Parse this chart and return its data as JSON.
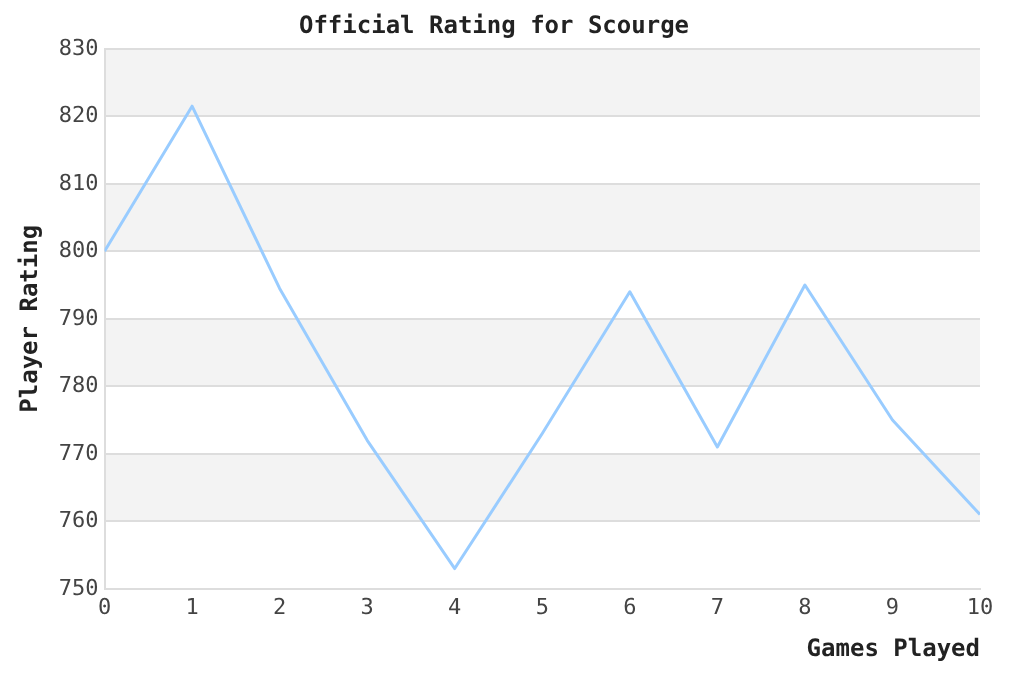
{
  "chart_data": {
    "type": "line",
    "title": "Official Rating for Scourge",
    "xlabel": "Games Played",
    "ylabel": "Player Rating",
    "x": [
      0,
      1,
      2,
      3,
      4,
      5,
      6,
      7,
      8,
      9,
      10
    ],
    "series": [
      {
        "color": "#99ccff",
        "values": [
          800,
          821.5,
          794.5,
          772,
          753,
          773,
          794,
          771,
          795,
          775,
          761
        ]
      }
    ],
    "xlim": [
      0,
      10
    ],
    "xticks": [
      0,
      1,
      2,
      3,
      4,
      5,
      6,
      7,
      8,
      9,
      10
    ],
    "ylim": [
      750,
      830
    ],
    "yticks": [
      750,
      760,
      770,
      780,
      790,
      800,
      810,
      820,
      830
    ],
    "grid": "y",
    "legend": false,
    "marker": "none",
    "line_style": "solid"
  }
}
